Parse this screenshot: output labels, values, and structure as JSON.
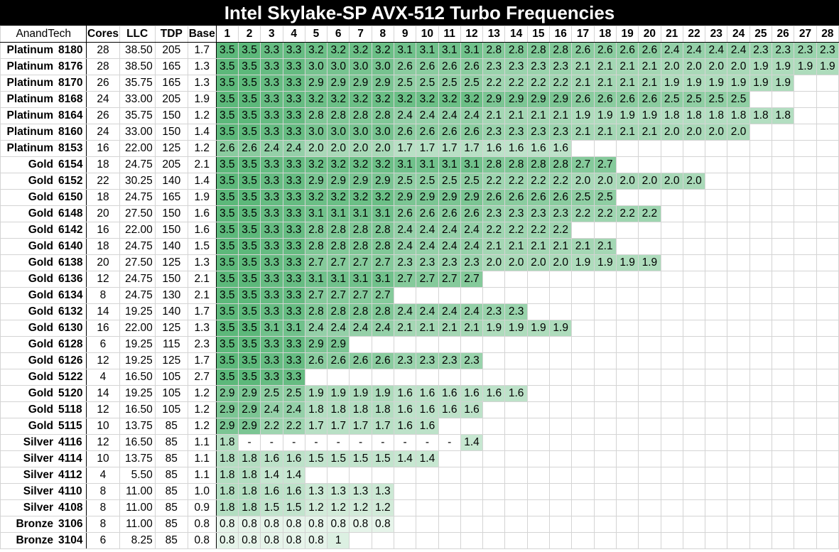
{
  "title": "Intel Skylake-SP AVX-512 Turbo Frequencies",
  "header": {
    "brand": "AnandTech",
    "cores": "Cores",
    "llc": "LLC",
    "tdp": "TDP",
    "base": "Base",
    "active_cores": [
      "1",
      "2",
      "3",
      "4",
      "5",
      "6",
      "7",
      "8",
      "9",
      "10",
      "11",
      "12",
      "13",
      "14",
      "15",
      "16",
      "17",
      "18",
      "19",
      "20",
      "21",
      "22",
      "23",
      "24",
      "25",
      "26",
      "27",
      "28"
    ]
  },
  "colors": {
    "green_dark": "#5cb87a",
    "green_light": "#e6f4ea",
    "header_bg": "#000000",
    "header_text": "#ffffff"
  },
  "chart_data": {
    "type": "table",
    "title": "Intel Skylake-SP AVX-512 Turbo Frequencies",
    "rows": [
      {
        "tier": "Platinum",
        "model": "8180",
        "cores": "28",
        "llc": "38.50",
        "tdp": "205",
        "base": "1.7",
        "turbo": [
          "3.5",
          "3.5",
          "3.3",
          "3.3",
          "3.2",
          "3.2",
          "3.2",
          "3.2",
          "3.1",
          "3.1",
          "3.1",
          "3.1",
          "2.8",
          "2.8",
          "2.8",
          "2.8",
          "2.6",
          "2.6",
          "2.6",
          "2.6",
          "2.4",
          "2.4",
          "2.4",
          "2.4",
          "2.3",
          "2.3",
          "2.3",
          "2.3"
        ]
      },
      {
        "tier": "Platinum",
        "model": "8176",
        "cores": "28",
        "llc": "38.50",
        "tdp": "165",
        "base": "1.3",
        "turbo": [
          "3.5",
          "3.5",
          "3.3",
          "3.3",
          "3.0",
          "3.0",
          "3.0",
          "3.0",
          "2.6",
          "2.6",
          "2.6",
          "2.6",
          "2.3",
          "2.3",
          "2.3",
          "2.3",
          "2.1",
          "2.1",
          "2.1",
          "2.1",
          "2.0",
          "2.0",
          "2.0",
          "2.0",
          "1.9",
          "1.9",
          "1.9",
          "1.9"
        ]
      },
      {
        "tier": "Platinum",
        "model": "8170",
        "cores": "26",
        "llc": "35.75",
        "tdp": "165",
        "base": "1.3",
        "turbo": [
          "3.5",
          "3.5",
          "3.3",
          "3.3",
          "2.9",
          "2.9",
          "2.9",
          "2.9",
          "2.5",
          "2.5",
          "2.5",
          "2.5",
          "2.2",
          "2.2",
          "2.2",
          "2.2",
          "2.1",
          "2.1",
          "2.1",
          "2.1",
          "1.9",
          "1.9",
          "1.9",
          "1.9",
          "1.9",
          "1.9"
        ]
      },
      {
        "tier": "Platinum",
        "model": "8168",
        "cores": "24",
        "llc": "33.00",
        "tdp": "205",
        "base": "1.9",
        "turbo": [
          "3.5",
          "3.5",
          "3.3",
          "3.3",
          "3.2",
          "3.2",
          "3.2",
          "3.2",
          "3.2",
          "3.2",
          "3.2",
          "3.2",
          "2.9",
          "2.9",
          "2.9",
          "2.9",
          "2.6",
          "2.6",
          "2.6",
          "2.6",
          "2.5",
          "2.5",
          "2.5",
          "2.5"
        ]
      },
      {
        "tier": "Platinum",
        "model": "8164",
        "cores": "26",
        "llc": "35.75",
        "tdp": "150",
        "base": "1.2",
        "turbo": [
          "3.5",
          "3.5",
          "3.3",
          "3.3",
          "2.8",
          "2.8",
          "2.8",
          "2.8",
          "2.4",
          "2.4",
          "2.4",
          "2.4",
          "2.1",
          "2.1",
          "2.1",
          "2.1",
          "1.9",
          "1.9",
          "1.9",
          "1.9",
          "1.8",
          "1.8",
          "1.8",
          "1.8",
          "1.8",
          "1.8"
        ]
      },
      {
        "tier": "Platinum",
        "model": "8160",
        "cores": "24",
        "llc": "33.00",
        "tdp": "150",
        "base": "1.4",
        "turbo": [
          "3.5",
          "3.5",
          "3.3",
          "3.3",
          "3.0",
          "3.0",
          "3.0",
          "3.0",
          "2.6",
          "2.6",
          "2.6",
          "2.6",
          "2.3",
          "2.3",
          "2.3",
          "2.3",
          "2.1",
          "2.1",
          "2.1",
          "2.1",
          "2.0",
          "2.0",
          "2.0",
          "2.0"
        ]
      },
      {
        "tier": "Platinum",
        "model": "8153",
        "cores": "16",
        "llc": "22.00",
        "tdp": "125",
        "base": "1.2",
        "turbo": [
          "2.6",
          "2.6",
          "2.4",
          "2.4",
          "2.0",
          "2.0",
          "2.0",
          "2.0",
          "1.7",
          "1.7",
          "1.7",
          "1.7",
          "1.6",
          "1.6",
          "1.6",
          "1.6"
        ]
      },
      {
        "tier": "Gold",
        "model": "6154",
        "cores": "18",
        "llc": "24.75",
        "tdp": "205",
        "base": "2.1",
        "turbo": [
          "3.5",
          "3.5",
          "3.3",
          "3.3",
          "3.2",
          "3.2",
          "3.2",
          "3.2",
          "3.1",
          "3.1",
          "3.1",
          "3.1",
          "2.8",
          "2.8",
          "2.8",
          "2.8",
          "2.7",
          "2.7"
        ]
      },
      {
        "tier": "Gold",
        "model": "6152",
        "cores": "22",
        "llc": "30.25",
        "tdp": "140",
        "base": "1.4",
        "turbo": [
          "3.5",
          "3.5",
          "3.3",
          "3.3",
          "2.9",
          "2.9",
          "2.9",
          "2.9",
          "2.5",
          "2.5",
          "2.5",
          "2.5",
          "2.2",
          "2.2",
          "2.2",
          "2.2",
          "2.0",
          "2.0",
          "2.0",
          "2.0",
          "2.0",
          "2.0"
        ]
      },
      {
        "tier": "Gold",
        "model": "6150",
        "cores": "18",
        "llc": "24.75",
        "tdp": "165",
        "base": "1.9",
        "turbo": [
          "3.5",
          "3.5",
          "3.3",
          "3.3",
          "3.2",
          "3.2",
          "3.2",
          "3.2",
          "2.9",
          "2.9",
          "2.9",
          "2.9",
          "2.6",
          "2.6",
          "2.6",
          "2.6",
          "2.5",
          "2.5"
        ]
      },
      {
        "tier": "Gold",
        "model": "6148",
        "cores": "20",
        "llc": "27.50",
        "tdp": "150",
        "base": "1.6",
        "turbo": [
          "3.5",
          "3.5",
          "3.3",
          "3.3",
          "3.1",
          "3.1",
          "3.1",
          "3.1",
          "2.6",
          "2.6",
          "2.6",
          "2.6",
          "2.3",
          "2.3",
          "2.3",
          "2.3",
          "2.2",
          "2.2",
          "2.2",
          "2.2"
        ]
      },
      {
        "tier": "Gold",
        "model": "6142",
        "cores": "16",
        "llc": "22.00",
        "tdp": "150",
        "base": "1.6",
        "turbo": [
          "3.5",
          "3.5",
          "3.3",
          "3.3",
          "2.8",
          "2.8",
          "2.8",
          "2.8",
          "2.4",
          "2.4",
          "2.4",
          "2.4",
          "2.2",
          "2.2",
          "2.2",
          "2.2"
        ]
      },
      {
        "tier": "Gold",
        "model": "6140",
        "cores": "18",
        "llc": "24.75",
        "tdp": "140",
        "base": "1.5",
        "turbo": [
          "3.5",
          "3.5",
          "3.3",
          "3.3",
          "2.8",
          "2.8",
          "2.8",
          "2.8",
          "2.4",
          "2.4",
          "2.4",
          "2.4",
          "2.1",
          "2.1",
          "2.1",
          "2.1",
          "2.1",
          "2.1"
        ]
      },
      {
        "tier": "Gold",
        "model": "6138",
        "cores": "20",
        "llc": "27.50",
        "tdp": "125",
        "base": "1.3",
        "turbo": [
          "3.5",
          "3.5",
          "3.3",
          "3.3",
          "2.7",
          "2.7",
          "2.7",
          "2.7",
          "2.3",
          "2.3",
          "2.3",
          "2.3",
          "2.0",
          "2.0",
          "2.0",
          "2.0",
          "1.9",
          "1.9",
          "1.9",
          "1.9"
        ]
      },
      {
        "tier": "Gold",
        "model": "6136",
        "cores": "12",
        "llc": "24.75",
        "tdp": "150",
        "base": "2.1",
        "turbo": [
          "3.5",
          "3.5",
          "3.3",
          "3.3",
          "3.1",
          "3.1",
          "3.1",
          "3.1",
          "2.7",
          "2.7",
          "2.7",
          "2.7"
        ]
      },
      {
        "tier": "Gold",
        "model": "6134",
        "cores": "8",
        "llc": "24.75",
        "tdp": "130",
        "base": "2.1",
        "turbo": [
          "3.5",
          "3.5",
          "3.3",
          "3.3",
          "2.7",
          "2.7",
          "2.7",
          "2.7"
        ]
      },
      {
        "tier": "Gold",
        "model": "6132",
        "cores": "14",
        "llc": "19.25",
        "tdp": "140",
        "base": "1.7",
        "turbo": [
          "3.5",
          "3.5",
          "3.3",
          "3.3",
          "2.8",
          "2.8",
          "2.8",
          "2.8",
          "2.4",
          "2.4",
          "2.4",
          "2.4",
          "2.3",
          "2.3"
        ]
      },
      {
        "tier": "Gold",
        "model": "6130",
        "cores": "16",
        "llc": "22.00",
        "tdp": "125",
        "base": "1.3",
        "turbo": [
          "3.5",
          "3.5",
          "3.1",
          "3.1",
          "2.4",
          "2.4",
          "2.4",
          "2.4",
          "2.1",
          "2.1",
          "2.1",
          "2.1",
          "1.9",
          "1.9",
          "1.9",
          "1.9"
        ]
      },
      {
        "tier": "Gold",
        "model": "6128",
        "cores": "6",
        "llc": "19.25",
        "tdp": "115",
        "base": "2.3",
        "turbo": [
          "3.5",
          "3.5",
          "3.3",
          "3.3",
          "2.9",
          "2.9"
        ]
      },
      {
        "tier": "Gold",
        "model": "6126",
        "cores": "12",
        "llc": "19.25",
        "tdp": "125",
        "base": "1.7",
        "turbo": [
          "3.5",
          "3.5",
          "3.3",
          "3.3",
          "2.6",
          "2.6",
          "2.6",
          "2.6",
          "2.3",
          "2.3",
          "2.3",
          "2.3"
        ]
      },
      {
        "tier": "Gold",
        "model": "5122",
        "cores": "4",
        "llc": "16.50",
        "tdp": "105",
        "base": "2.7",
        "turbo": [
          "3.5",
          "3.5",
          "3.3",
          "3.3"
        ]
      },
      {
        "tier": "Gold",
        "model": "5120",
        "cores": "14",
        "llc": "19.25",
        "tdp": "105",
        "base": "1.2",
        "turbo": [
          "2.9",
          "2.9",
          "2.5",
          "2.5",
          "1.9",
          "1.9",
          "1.9",
          "1.9",
          "1.6",
          "1.6",
          "1.6",
          "1.6",
          "1.6",
          "1.6"
        ]
      },
      {
        "tier": "Gold",
        "model": "5118",
        "cores": "12",
        "llc": "16.50",
        "tdp": "105",
        "base": "1.2",
        "turbo": [
          "2.9",
          "2.9",
          "2.4",
          "2.4",
          "1.8",
          "1.8",
          "1.8",
          "1.8",
          "1.6",
          "1.6",
          "1.6",
          "1.6"
        ]
      },
      {
        "tier": "Gold",
        "model": "5115",
        "cores": "10",
        "llc": "13.75",
        "tdp": "85",
        "base": "1.2",
        "turbo": [
          "2.9",
          "2.9",
          "2.2",
          "2.2",
          "1.7",
          "1.7",
          "1.7",
          "1.7",
          "1.6",
          "1.6"
        ]
      },
      {
        "tier": "Silver",
        "model": "4116",
        "cores": "12",
        "llc": "16.50",
        "tdp": "85",
        "base": "1.1",
        "turbo": [
          "1.8",
          "-",
          "-",
          "-",
          "-",
          "-",
          "-",
          "-",
          "-",
          "-",
          "-",
          "1.4"
        ]
      },
      {
        "tier": "Silver",
        "model": "4114",
        "cores": "10",
        "llc": "13.75",
        "tdp": "85",
        "base": "1.1",
        "turbo": [
          "1.8",
          "1.8",
          "1.6",
          "1.6",
          "1.5",
          "1.5",
          "1.5",
          "1.5",
          "1.4",
          "1.4"
        ]
      },
      {
        "tier": "Silver",
        "model": "4112",
        "cores": "4",
        "llc": "5.50",
        "tdp": "85",
        "base": "1.1",
        "turbo": [
          "1.8",
          "1.8",
          "1.4",
          "1.4"
        ]
      },
      {
        "tier": "Silver",
        "model": "4110",
        "cores": "8",
        "llc": "11.00",
        "tdp": "85",
        "base": "1.0",
        "turbo": [
          "1.8",
          "1.8",
          "1.6",
          "1.6",
          "1.3",
          "1.3",
          "1.3",
          "1.3"
        ]
      },
      {
        "tier": "Silver",
        "model": "4108",
        "cores": "8",
        "llc": "11.00",
        "tdp": "85",
        "base": "0.9",
        "turbo": [
          "1.8",
          "1.8",
          "1.5",
          "1.5",
          "1.2",
          "1.2",
          "1.2",
          "1.2"
        ]
      },
      {
        "tier": "Bronze",
        "model": "3106",
        "cores": "8",
        "llc": "11.00",
        "tdp": "85",
        "base": "0.8",
        "turbo": [
          "0.8",
          "0.8",
          "0.8",
          "0.8",
          "0.8",
          "0.8",
          "0.8",
          "0.8"
        ]
      },
      {
        "tier": "Bronze",
        "model": "3104",
        "cores": "6",
        "llc": "8.25",
        "tdp": "85",
        "base": "0.8",
        "turbo": [
          "0.8",
          "0.8",
          "0.8",
          "0.8",
          "0.8",
          "1"
        ]
      }
    ]
  }
}
